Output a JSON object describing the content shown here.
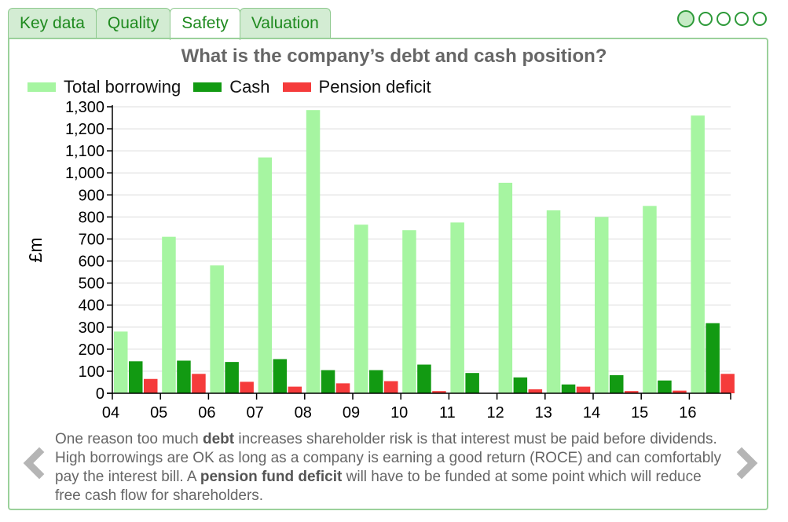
{
  "tabs": [
    {
      "label": "Key data",
      "active": false
    },
    {
      "label": "Quality",
      "active": false
    },
    {
      "label": "Safety",
      "active": true
    },
    {
      "label": "Valuation",
      "active": false
    }
  ],
  "pager": {
    "count": 5,
    "active": 0
  },
  "colors": {
    "total_borrowing": "#a6f5a1",
    "cash": "#129a12",
    "pension_deficit": "#f53b3b",
    "accent": "#2e9a3a"
  },
  "chart_data": {
    "type": "bar",
    "title": "What is the company’s debt and cash position?",
    "ylabel": "£m",
    "xlabel": "",
    "ylim": [
      0,
      1300
    ],
    "yticks": [
      "0",
      "100",
      "200",
      "300",
      "400",
      "500",
      "600",
      "700",
      "800",
      "900",
      "1,000",
      "1,100",
      "1,200",
      "1,300"
    ],
    "categories": [
      "04",
      "05",
      "06",
      "07",
      "08",
      "09",
      "10",
      "11",
      "12",
      "13",
      "14",
      "15",
      "16"
    ],
    "legend_position": "top-left",
    "grid": true,
    "series": [
      {
        "name": "Total borrowing",
        "values": [
          280,
          710,
          580,
          1070,
          1285,
          765,
          740,
          775,
          955,
          830,
          800,
          850,
          1260
        ]
      },
      {
        "name": "Cash",
        "values": [
          145,
          148,
          142,
          155,
          105,
          105,
          130,
          92,
          72,
          40,
          82,
          58,
          318
        ]
      },
      {
        "name": "Pension deficit",
        "values": [
          65,
          88,
          52,
          30,
          45,
          55,
          10,
          0,
          18,
          30,
          10,
          12,
          88
        ]
      }
    ]
  },
  "description": {
    "parts": [
      {
        "text": "One reason too much ",
        "bold": false
      },
      {
        "text": "debt",
        "bold": true
      },
      {
        "text": " increases shareholder risk is that interest must be paid before dividends. High borrowings are OK as long as a company is earning a good return (ROCE) and can comfortably pay the interest bill. A ",
        "bold": false
      },
      {
        "text": "pension fund deficit",
        "bold": true
      },
      {
        "text": " will have to be funded at some point which will reduce free cash flow for shareholders.",
        "bold": false
      }
    ]
  },
  "nav": {
    "prev_icon": "chevron-left-icon",
    "next_icon": "chevron-right-icon"
  }
}
